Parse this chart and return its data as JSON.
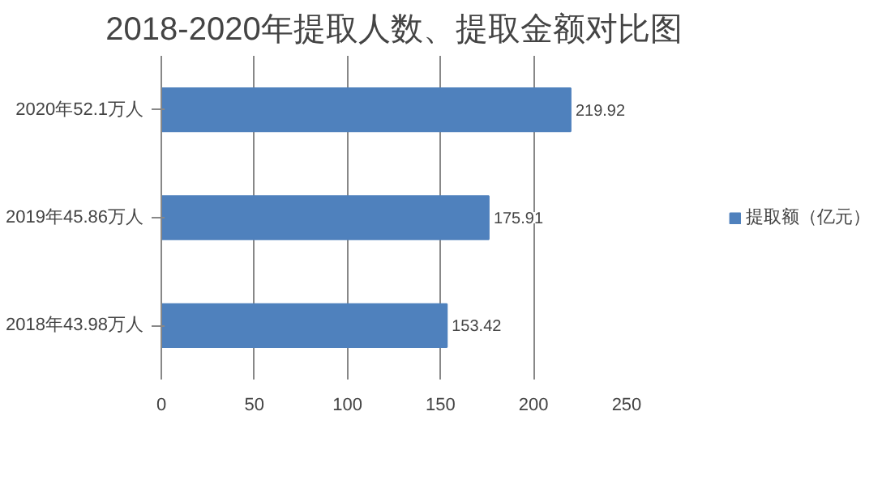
{
  "chart_data": {
    "type": "bar",
    "orientation": "horizontal",
    "title": "2018-2020年提取人数、提取金额对比图",
    "categories": [
      "2020年52.1万人",
      "2019年45.86万人",
      "2018年43.98万人"
    ],
    "series": [
      {
        "name": "提取额（亿元）",
        "color": "#4f81bd",
        "values": [
          219.92,
          175.91,
          153.42
        ]
      }
    ],
    "xlim": [
      0,
      250
    ],
    "xticks": [
      0,
      50,
      100,
      150,
      200,
      250
    ],
    "grid": "x",
    "legend": "right",
    "data_labels": true
  }
}
